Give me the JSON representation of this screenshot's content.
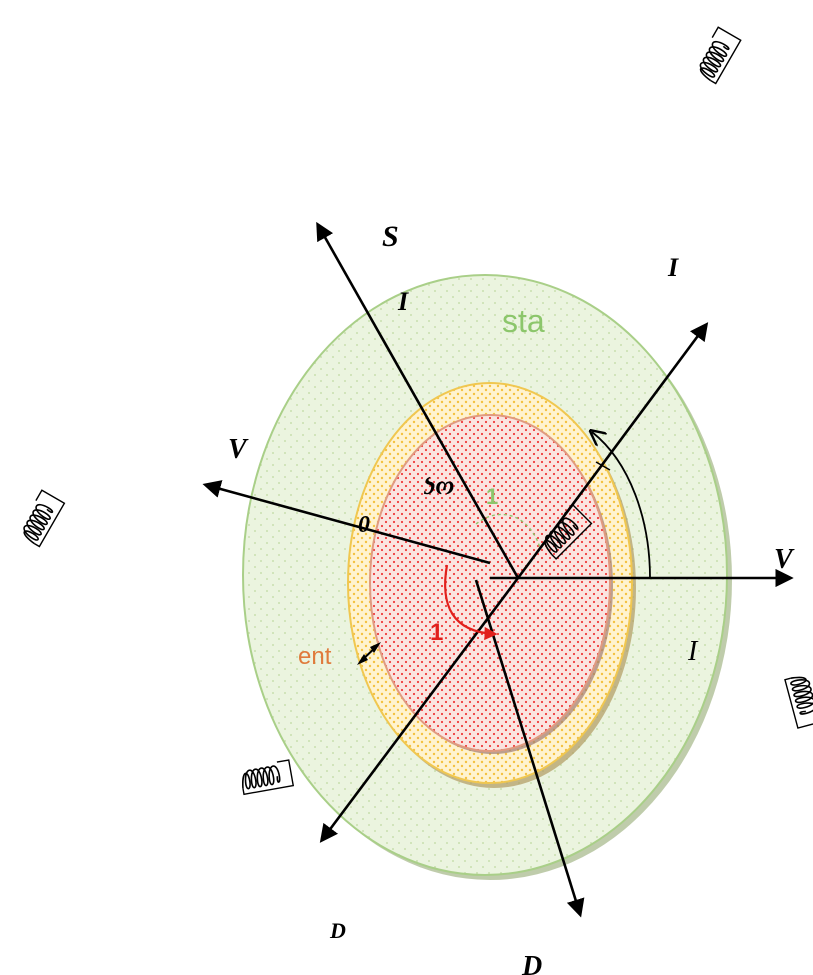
{
  "colors": {
    "stator_fill": "#ebf4df",
    "stator_dot": "#c9dfae",
    "stator_ring": "#a9cf88",
    "airgap_fill": "#fff3cf",
    "airgap_dot": "#f4c140",
    "airgap_ring": "#f0c750",
    "rotor_fill": "#fbe4e0",
    "rotor_dot": "#ef3b3b",
    "rotor_ring": "#e09a80",
    "shadow": "#8aa266",
    "axis": "#000000",
    "red_arrow": "#e1201c",
    "green_label": "#8cc66b",
    "orange_label": "#e07a3b"
  },
  "labels": {
    "top_axis": "S",
    "top_sub": "I",
    "stator_text": "sta",
    "upper_right": "I",
    "left_axis": "V",
    "rotor_text": "ως",
    "rotor_zero": "0",
    "green_one": "1",
    "right_axis": "V",
    "red_one": "1",
    "orange_text": "ent",
    "right_I": "I",
    "bottom_left_axis": "D",
    "bottom_axis": "D"
  },
  "icons": [
    "coil-icon-top-right",
    "coil-icon-left",
    "coil-icon-center",
    "coil-icon-right",
    "coil-icon-bottom-left"
  ]
}
